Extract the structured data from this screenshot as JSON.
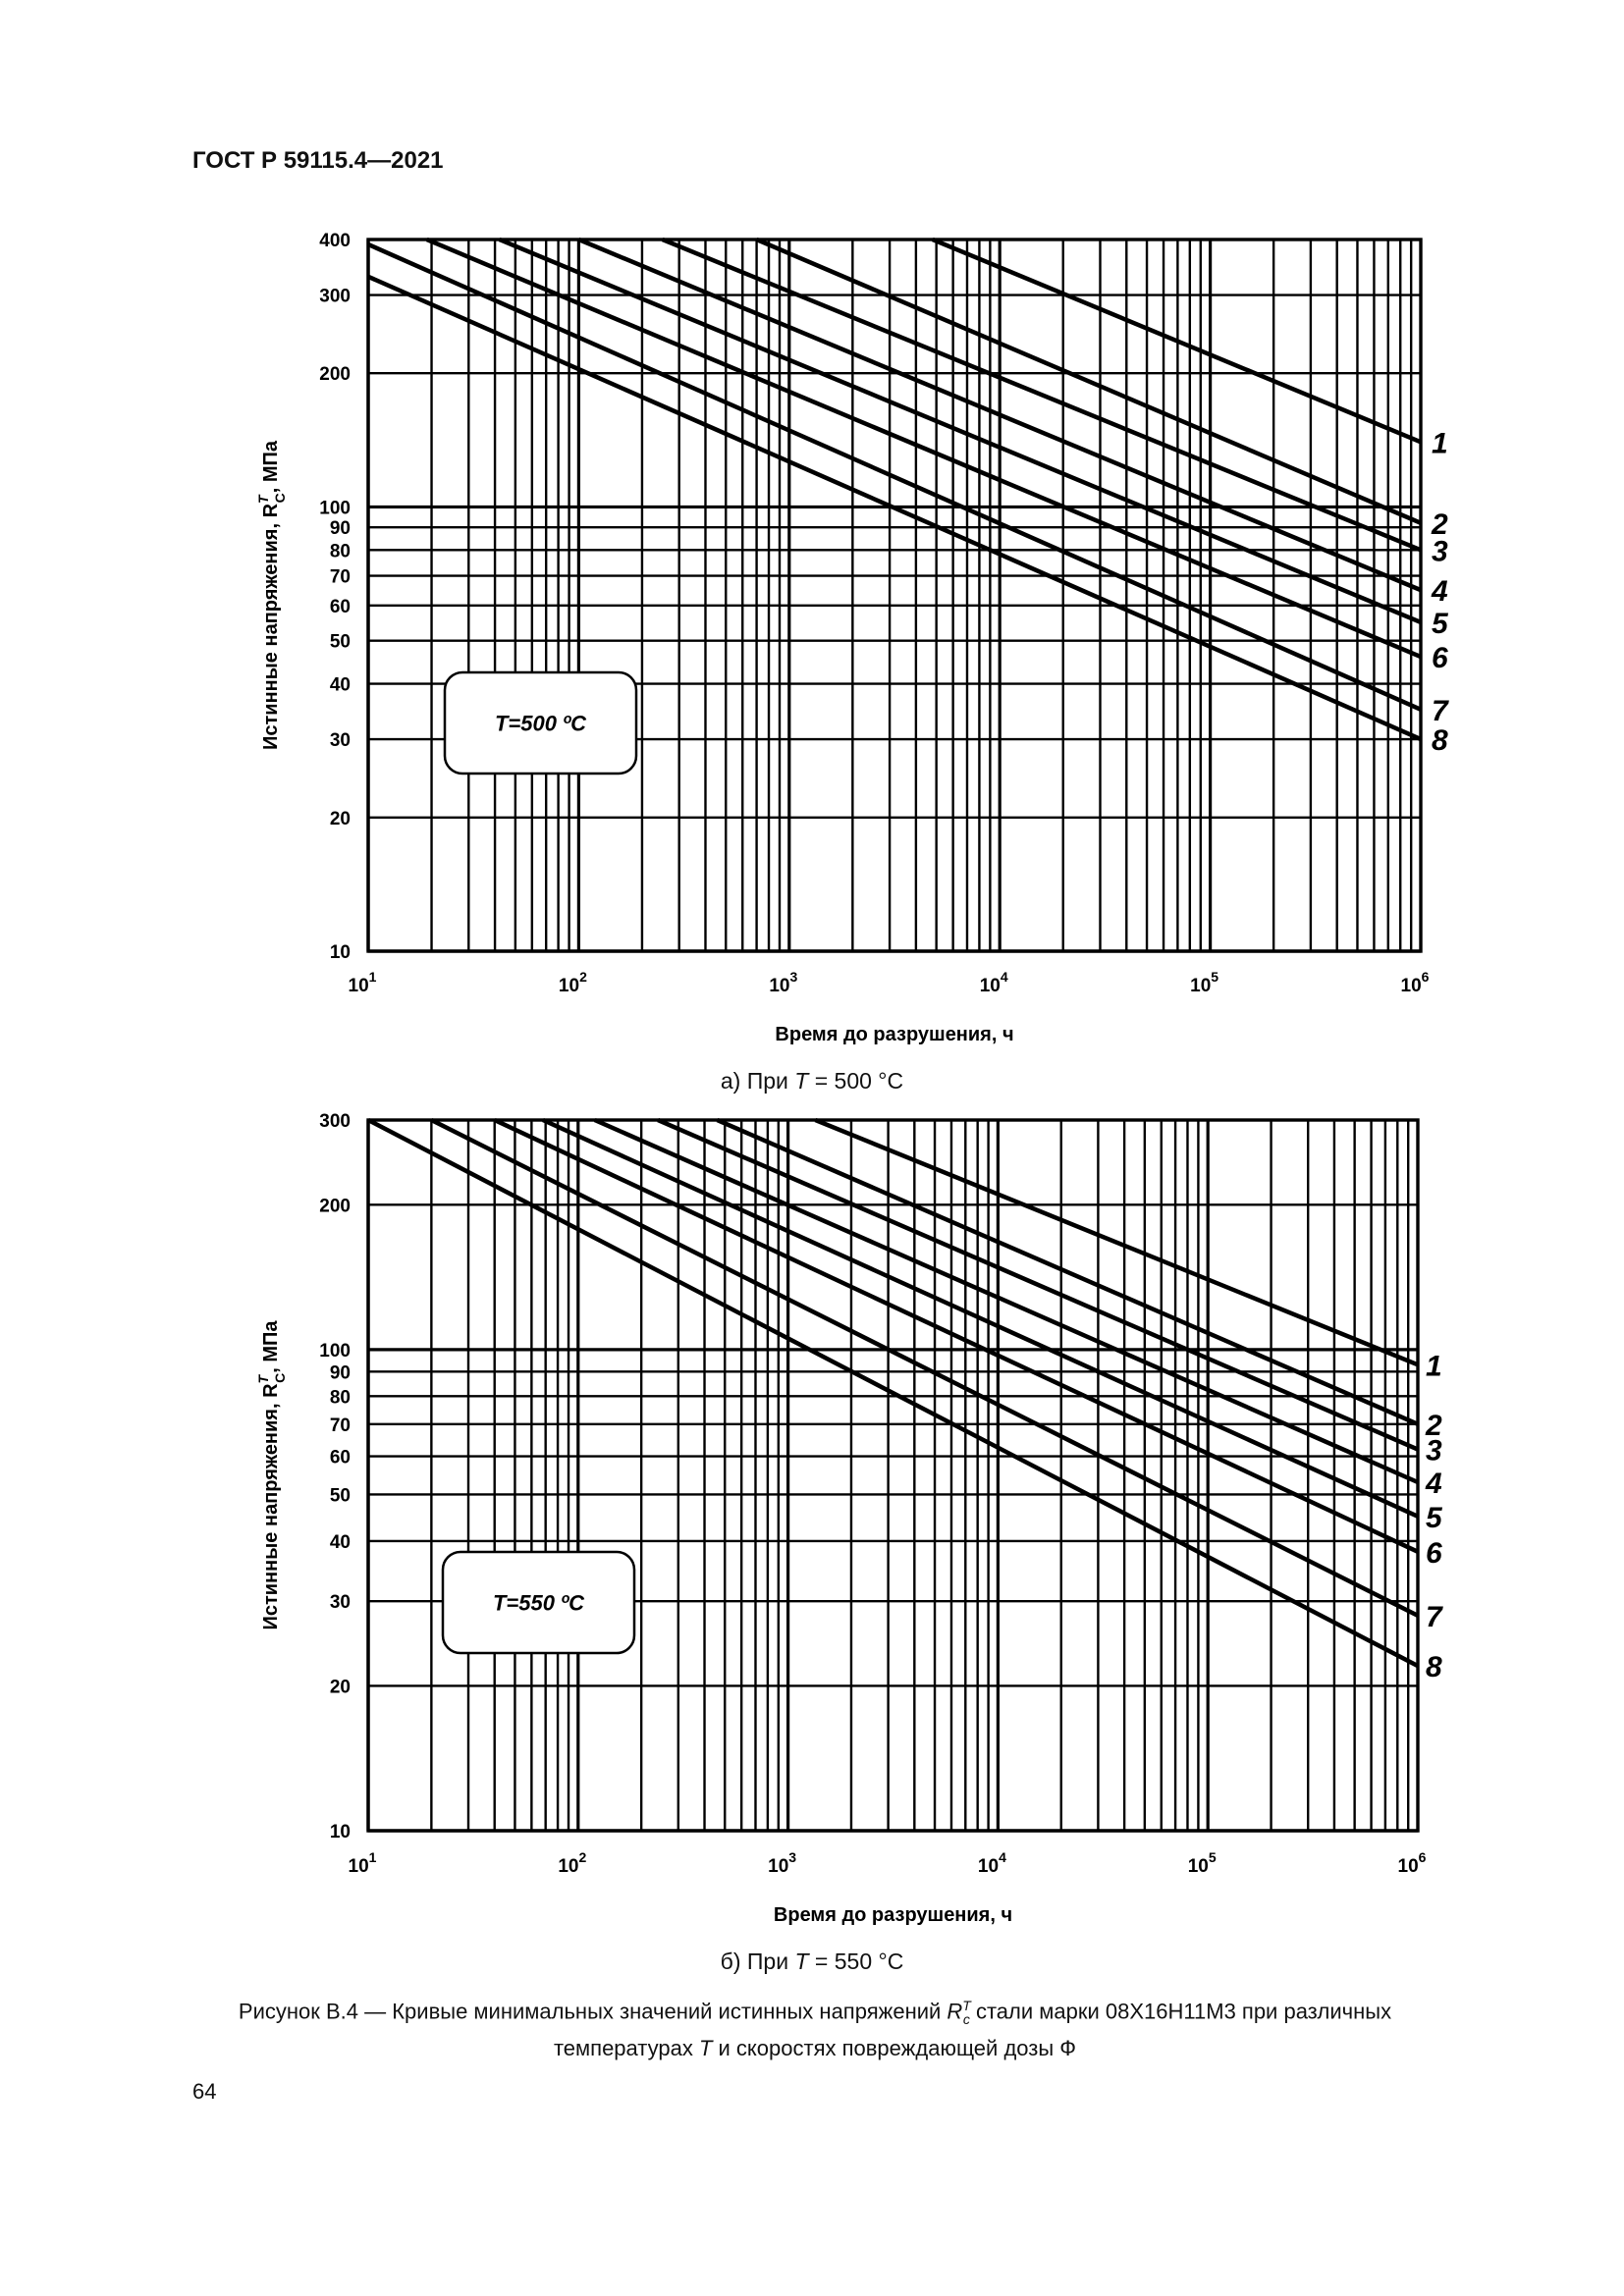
{
  "header": {
    "standard": "ГОСТ Р 59115.4—2021"
  },
  "page_number": "64",
  "figure": {
    "caption_prefix": "Рисунок В.4 — Кривые минимальных значений истинных напряжений ",
    "caption_symbol": "R",
    "caption_sup": "T",
    "caption_sub": "c",
    "caption_suffix": " стали марки 08Х16Н11М3 при различных",
    "caption_line2_a": "температурах ",
    "caption_line2_sym": "T",
    "caption_line2_b": " и скоростях повреждающей дозы Ф"
  },
  "panels": [
    {
      "subcaption_prefix": "а) При ",
      "subcaption_sym": "T",
      "subcaption_suffix": " = 500 °C",
      "temp_box": "T=500 ºC"
    },
    {
      "subcaption_prefix": "б) При ",
      "subcaption_sym": "T",
      "subcaption_suffix": " = 550 °C",
      "temp_box": "T=550 ºC"
    }
  ],
  "chart_data": [
    {
      "type": "line",
      "title": "а) При T = 500 °C",
      "xlabel": "Время до разрушения, ч",
      "ylabel_main": "Истинные напряжения, R",
      "ylabel_sup": "T",
      "ylabel_sub": "C",
      "ylabel_unit": ", МПа",
      "xscale": "log",
      "yscale": "log",
      "xlim": [
        10,
        1000000
      ],
      "ylim": [
        10,
        400
      ],
      "x_ticks": [
        "10",
        "10",
        "10",
        "10",
        "10",
        "10"
      ],
      "x_tick_exponents": [
        "1",
        "2",
        "3",
        "4",
        "5",
        "6"
      ],
      "y_ticks": [
        10,
        20,
        30,
        40,
        50,
        60,
        70,
        80,
        90,
        100,
        200,
        300,
        400
      ],
      "y_tick_labels": [
        "10",
        "20",
        "30",
        "40",
        "50",
        "60",
        "70",
        "80",
        "90",
        "100",
        "200",
        "300",
        "400"
      ],
      "grid": true,
      "series": [
        {
          "name": "1",
          "points": [
            [
              4800,
              400
            ],
            [
              1000000,
              140
            ]
          ]
        },
        {
          "name": "2",
          "points": [
            [
              700,
              400
            ],
            [
              1000000,
              92
            ]
          ]
        },
        {
          "name": "3",
          "points": [
            [
              250,
              400
            ],
            [
              1000000,
              80
            ]
          ]
        },
        {
          "name": "4",
          "points": [
            [
              100,
              400
            ],
            [
              1000000,
              65
            ]
          ]
        },
        {
          "name": "5",
          "points": [
            [
              42,
              400
            ],
            [
              1000000,
              55
            ]
          ]
        },
        {
          "name": "6",
          "points": [
            [
              19,
              400
            ],
            [
              1000000,
              46
            ]
          ]
        },
        {
          "name": "7",
          "points": [
            [
              10,
              390
            ],
            [
              1000000,
              35
            ]
          ]
        },
        {
          "name": "8",
          "points": [
            [
              10,
              330
            ],
            [
              1000000,
              30
            ]
          ]
        }
      ]
    },
    {
      "type": "line",
      "title": "б) При T = 550 °C",
      "xlabel": "Время до разрушения, ч",
      "ylabel_main": "Истинные напряжения, R",
      "ylabel_sup": "T",
      "ylabel_sub": "C",
      "ylabel_unit": ", МПа",
      "xscale": "log",
      "yscale": "log",
      "xlim": [
        10,
        1000000
      ],
      "ylim": [
        10,
        300
      ],
      "x_ticks": [
        "10",
        "10",
        "10",
        "10",
        "10",
        "10"
      ],
      "x_tick_exponents": [
        "1",
        "2",
        "3",
        "4",
        "5",
        "6"
      ],
      "y_ticks": [
        10,
        20,
        30,
        40,
        50,
        60,
        70,
        80,
        90,
        100,
        200,
        300
      ],
      "y_tick_labels": [
        "10",
        "20",
        "30",
        "40",
        "50",
        "60",
        "70",
        "80",
        "90",
        "100",
        "200",
        "300"
      ],
      "grid": true,
      "series": [
        {
          "name": "1",
          "points": [
            [
              1350,
              300
            ],
            [
              1000000,
              93
            ]
          ]
        },
        {
          "name": "2",
          "points": [
            [
              460,
              300
            ],
            [
              1000000,
              70
            ]
          ]
        },
        {
          "name": "3",
          "points": [
            [
              240,
              300
            ],
            [
              1000000,
              62
            ]
          ]
        },
        {
          "name": "4",
          "points": [
            [
              120,
              300
            ],
            [
              1000000,
              53
            ]
          ]
        },
        {
          "name": "5",
          "points": [
            [
              68,
              300
            ],
            [
              1000000,
              45
            ]
          ]
        },
        {
          "name": "6",
          "points": [
            [
              40,
              300
            ],
            [
              1000000,
              38
            ]
          ]
        },
        {
          "name": "7",
          "points": [
            [
              20,
              300
            ],
            [
              1000000,
              28
            ]
          ]
        },
        {
          "name": "8",
          "points": [
            [
              10,
              300
            ],
            [
              1000000,
              22
            ]
          ]
        }
      ]
    }
  ]
}
